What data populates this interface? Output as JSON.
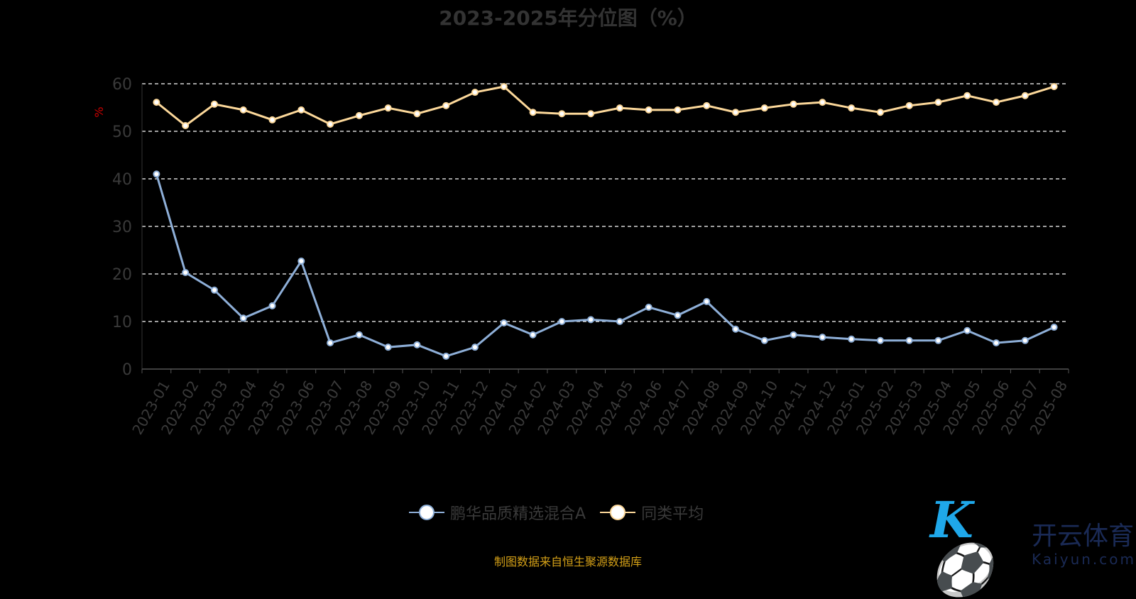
{
  "chart_data": {
    "type": "line",
    "title": "2023-2025年分位图（%）",
    "ylabel": "%",
    "ylim": [
      0,
      60
    ],
    "yticks": [
      0,
      10,
      20,
      30,
      40,
      50,
      60
    ],
    "grid": true,
    "legend_position": "bottom",
    "categories": [
      "2023-01",
      "2023-02",
      "2023-03",
      "2023-04",
      "2023-05",
      "2023-06",
      "2023-07",
      "2023-08",
      "2023-09",
      "2023-10",
      "2023-11",
      "2023-12",
      "2024-01",
      "2024-02",
      "2024-03",
      "2024-04",
      "2024-05",
      "2024-06",
      "2024-07",
      "2024-08",
      "2024-09",
      "2024-10",
      "2024-11",
      "2024-12",
      "2025-01",
      "2025-02",
      "2025-03",
      "2025-04",
      "2025-05",
      "2025-06",
      "2025-07",
      "2025-08"
    ],
    "series": [
      {
        "name": "鹏华品质精选混合A",
        "color": "#8eafd8",
        "values": [
          41.0,
          20.3,
          16.6,
          10.7,
          13.3,
          22.7,
          5.5,
          7.2,
          4.6,
          5.1,
          2.7,
          4.6,
          9.7,
          7.2,
          10.0,
          10.4,
          10.0,
          13.0,
          11.3,
          14.2,
          8.4,
          6.0,
          7.2,
          6.7,
          6.3,
          6.0,
          6.0,
          6.0,
          8.1,
          5.5,
          6.0,
          8.8
        ]
      },
      {
        "name": "同类平均",
        "color": "#fcd89a",
        "values": [
          56.1,
          51.2,
          55.7,
          54.5,
          52.4,
          54.5,
          51.5,
          53.3,
          54.9,
          53.7,
          55.4,
          58.2,
          59.4,
          54.0,
          53.7,
          53.7,
          54.9,
          54.5,
          54.5,
          55.4,
          54.0,
          54.9,
          55.7,
          56.1,
          54.9,
          54.0,
          55.4,
          56.1,
          57.5,
          56.1,
          57.5,
          59.4
        ]
      }
    ]
  },
  "source": "制图数据来自恒生聚源数据库",
  "watermark": {
    "cn": "开云体育",
    "en": "Kaiyun.com"
  }
}
